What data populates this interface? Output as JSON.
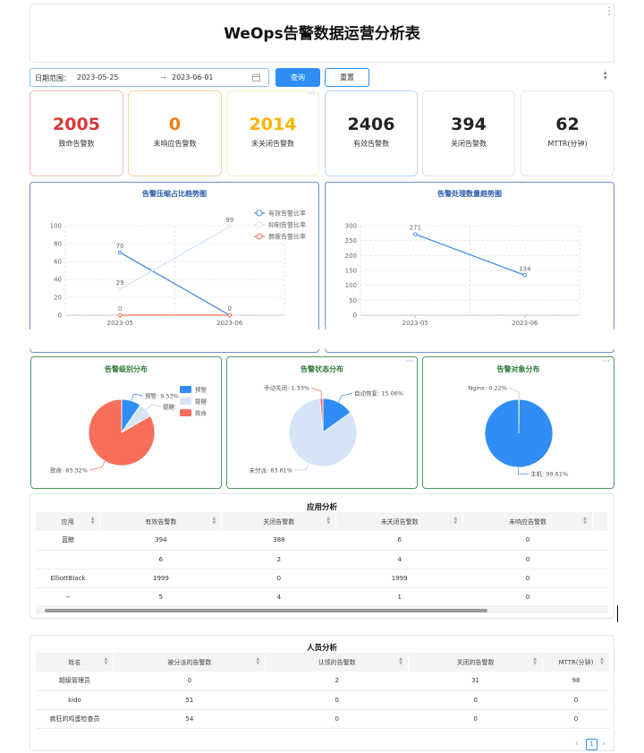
{
  "header": {
    "title": "WeOps告警数据运营分析表"
  },
  "filter": {
    "label": "日期范围：",
    "start": "2023-05-25",
    "arrow": "→",
    "end": "2023-06-01",
    "query_label": "查询",
    "reset_label": "重置"
  },
  "stats": [
    {
      "value": "2005",
      "label": "致命告警数",
      "color": "#d93838",
      "border": "#f3b9b3"
    },
    {
      "value": "0",
      "label": "未响应告警数",
      "color": "#f07c14",
      "border": "#f6d3a8"
    },
    {
      "value": "2014",
      "label": "未关闭告警数",
      "color": "#f5b400",
      "border": "#f2efc8"
    },
    {
      "value": "2406",
      "label": "有效告警数",
      "color": "#222222",
      "border": "#b9d8f5"
    },
    {
      "value": "394",
      "label": "关闭告警数",
      "color": "#222222",
      "border": "#e3e9f0"
    },
    {
      "value": "62",
      "label": "MTTR(分钟)",
      "color": "#222222",
      "border": "#e3e6f5"
    }
  ],
  "chart_data": [
    {
      "type": "line",
      "title": "告警压缩占比趋势图",
      "categories": [
        "2023-05",
        "2023-06"
      ],
      "ylim": [
        0,
        100
      ],
      "yticks": [
        "0",
        "20",
        "40",
        "60",
        "80",
        "100"
      ],
      "legend_position": "top-right",
      "series": [
        {
          "name": "有效告警比率",
          "values": [
            70,
            0
          ],
          "color": "#4a90e2",
          "labels": [
            "70",
            "0"
          ]
        },
        {
          "name": "抑制告警比率",
          "values": [
            29,
            99
          ],
          "color": "#d6e4f7",
          "labels": [
            "29",
            "99"
          ]
        },
        {
          "name": "屏蔽告警比率",
          "values": [
            0,
            0
          ],
          "color": "#f0705a",
          "labels": [
            "0",
            ""
          ]
        }
      ]
    },
    {
      "type": "line",
      "title": "告警处理数量趋势图",
      "categories": [
        "2023-05",
        "2023-06"
      ],
      "ylim": [
        0,
        300
      ],
      "yticks": [
        "0",
        "50",
        "100",
        "150",
        "200",
        "250",
        "300"
      ],
      "series": [
        {
          "values": [
            271,
            134
          ],
          "color": "#4a90e2",
          "labels": [
            "271",
            "134"
          ]
        }
      ]
    },
    {
      "type": "pie",
      "title": "告警级别分布",
      "legend_position": "right",
      "slices": [
        {
          "name": "预警",
          "value": 9.53,
          "label": "预警: 9.53%",
          "color": "#2f8df5"
        },
        {
          "name": "提醒",
          "value": 7.15,
          "label": "提醒: ",
          "color": "#d6e4f7"
        },
        {
          "name": "致命",
          "value": 83.32,
          "label": "致命: 83.32%",
          "color": "#f86e5a"
        }
      ]
    },
    {
      "type": "pie",
      "title": "告警状态分布",
      "slices": [
        {
          "name": "自动恢复",
          "value": 15.06,
          "label": "自动恢复: 15.06%",
          "color": "#2f8df5"
        },
        {
          "name": "未分派",
          "value": 83.61,
          "label": "未分派: 83.61%",
          "color": "#d6e4f7"
        },
        {
          "name": "手动关闭",
          "value": 1.33,
          "label": "手动关闭: 1.33%",
          "color": "#f86e5a"
        }
      ]
    },
    {
      "type": "pie",
      "title": "告警对象分布",
      "slices": [
        {
          "name": "Nginx",
          "value": 0.22,
          "label": "Nginx: 0.22%",
          "color": "#d6e4f7"
        },
        {
          "name": "主机",
          "value": 99.61,
          "label": "主机: 99.61%",
          "color": "#2f8df5"
        }
      ]
    }
  ],
  "app_analysis": {
    "title": "应用分析",
    "columns": [
      "应用",
      "有效告警数",
      "关闭告警数",
      "未关闭告警数",
      "未响应告警数"
    ],
    "rows": [
      [
        "蓝鲸",
        "394",
        "388",
        "6",
        "0"
      ],
      [
        "",
        "6",
        "2",
        "4",
        "0"
      ],
      [
        "ElliottBlack",
        "1999",
        "0",
        "1999",
        "0"
      ],
      [
        "--",
        "5",
        "4",
        "1",
        "0"
      ]
    ]
  },
  "people_analysis": {
    "title": "人员分析",
    "columns": [
      "姓名",
      "被分派的告警数",
      "认领的告警数",
      "关闭的告警数",
      "MTTR(分钟)"
    ],
    "rows": [
      [
        "超级管理员",
        "0",
        "2",
        "31",
        "98"
      ],
      [
        "kido",
        "51",
        "0",
        "0",
        "0"
      ],
      [
        "疯狂的鸡蛋检查员",
        "54",
        "0",
        "0",
        "0"
      ]
    ]
  },
  "pagination": {
    "prev": "‹",
    "page": "1",
    "next": "›"
  },
  "colors": {
    "accent": "#2f8df5",
    "green_border": "#4a9a5a",
    "blue_border": "#5b8bd6"
  }
}
